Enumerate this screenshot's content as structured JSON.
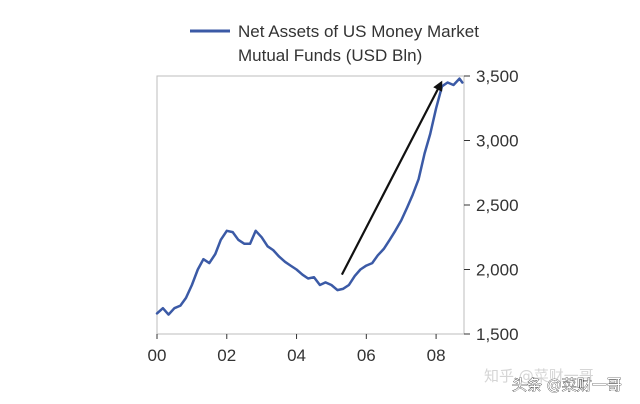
{
  "chart_data": {
    "type": "line",
    "title": "",
    "xlabel": "",
    "ylabel": "",
    "legend": {
      "entries": [
        "Net Assets of US Money Market",
        "Mutual Funds (USD Bln)"
      ],
      "placement": "top-left, above plot"
    },
    "xlim": [
      2000,
      2008.8
    ],
    "ylim": [
      1500,
      3500
    ],
    "x_ticks": [
      {
        "value": 2000,
        "label": "00"
      },
      {
        "value": 2002,
        "label": "02"
      },
      {
        "value": 2004,
        "label": "04"
      },
      {
        "value": 2006,
        "label": "06"
      },
      {
        "value": 2008,
        "label": "08"
      }
    ],
    "y_ticks": [
      {
        "value": 1500,
        "label": "1,500"
      },
      {
        "value": 2000,
        "label": "2,000"
      },
      {
        "value": 2500,
        "label": "2,500"
      },
      {
        "value": 3000,
        "label": "3,000"
      },
      {
        "value": 3500,
        "label": "3,500"
      }
    ],
    "grid": false,
    "series": [
      {
        "name": "Net Assets of US Money Market Mutual Funds (USD Bln)",
        "color": "#3b5aa6",
        "x": [
          2000.0,
          2000.17,
          2000.33,
          2000.5,
          2000.67,
          2000.83,
          2001.0,
          2001.17,
          2001.33,
          2001.5,
          2001.67,
          2001.83,
          2002.0,
          2002.17,
          2002.33,
          2002.5,
          2002.67,
          2002.83,
          2003.0,
          2003.17,
          2003.33,
          2003.5,
          2003.67,
          2003.83,
          2004.0,
          2004.17,
          2004.33,
          2004.5,
          2004.67,
          2004.83,
          2005.0,
          2005.17,
          2005.33,
          2005.5,
          2005.67,
          2005.83,
          2006.0,
          2006.17,
          2006.33,
          2006.5,
          2006.67,
          2006.83,
          2007.0,
          2007.17,
          2007.33,
          2007.5,
          2007.67,
          2007.83,
          2008.0,
          2008.17,
          2008.33,
          2008.5,
          2008.67,
          2008.75
        ],
        "values": [
          1660,
          1700,
          1650,
          1700,
          1720,
          1780,
          1880,
          2000,
          2080,
          2050,
          2120,
          2230,
          2300,
          2290,
          2230,
          2200,
          2200,
          2300,
          2250,
          2180,
          2150,
          2100,
          2060,
          2030,
          2000,
          1960,
          1930,
          1940,
          1880,
          1900,
          1880,
          1840,
          1850,
          1880,
          1950,
          2000,
          2030,
          2050,
          2110,
          2160,
          2230,
          2300,
          2380,
          2480,
          2580,
          2700,
          2900,
          3050,
          3250,
          3420,
          3450,
          3430,
          3480,
          3450
        ]
      }
    ],
    "annotations": [
      {
        "type": "arrow",
        "from": {
          "x": 2005.3,
          "y": 1960
        },
        "to": {
          "x": 2008.15,
          "y": 3450
        }
      }
    ]
  },
  "watermark": {
    "faint_text": "知乎 @菜财一哥",
    "text": "头条 @菜财一哥"
  }
}
